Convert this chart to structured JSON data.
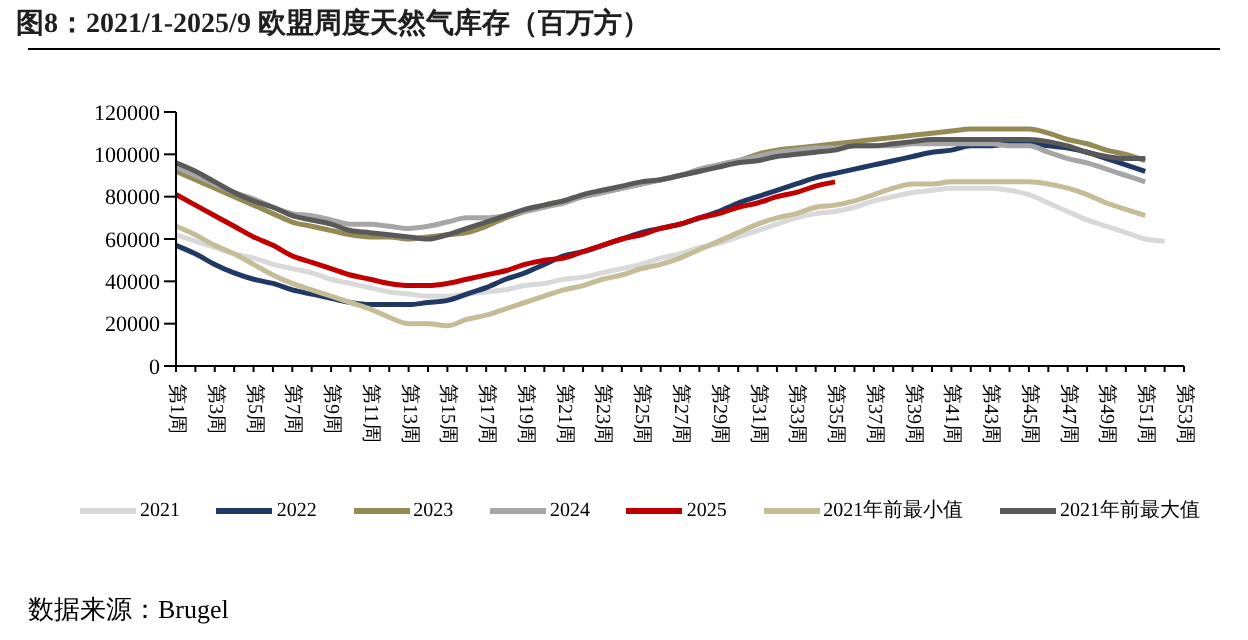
{
  "chart_data": {
    "type": "line",
    "title": "图8：2021/1-2025/9 欧盟周度天然气库存（百万方）",
    "categories": [
      "第1周",
      null,
      "第3周",
      null,
      "第5周",
      null,
      "第7周",
      null,
      "第9周",
      null,
      "第11周",
      null,
      "第13周",
      null,
      "第15周",
      null,
      "第17周",
      null,
      "第19周",
      null,
      "第21周",
      null,
      "第23周",
      null,
      "第25周",
      null,
      "第27周",
      null,
      "第29周",
      null,
      "第31周",
      null,
      "第33周",
      null,
      "第35周",
      null,
      "第37周",
      null,
      "第39周",
      null,
      "第41周",
      null,
      "第43周",
      null,
      "第45周",
      null,
      "第47周",
      null,
      "第49周",
      null,
      "第51周",
      null,
      "第53周"
    ],
    "series": [
      {
        "name": "2021",
        "color": "#d9d9d9",
        "values": [
          62000,
          59000,
          56000,
          53000,
          51000,
          48000,
          46000,
          44000,
          41000,
          39000,
          37000,
          35000,
          34000,
          33000,
          33000,
          34000,
          35000,
          36000,
          38000,
          39000,
          41000,
          42000,
          44000,
          46000,
          48000,
          51000,
          53000,
          56000,
          58000,
          61000,
          64000,
          67000,
          70000,
          72000,
          73000,
          75000,
          78000,
          80000,
          82000,
          83000,
          84000,
          84000,
          84000,
          83000,
          81000,
          77000,
          73000,
          69000,
          66000,
          63000,
          60000,
          59000,
          null
        ]
      },
      {
        "name": "2022",
        "color": "#1f3864",
        "values": [
          57000,
          53000,
          48000,
          44000,
          41000,
          39000,
          36000,
          34000,
          32000,
          30000,
          29000,
          29000,
          29000,
          30000,
          31000,
          34000,
          37000,
          41000,
          44000,
          48000,
          52000,
          54000,
          57000,
          60000,
          63000,
          65000,
          67000,
          70000,
          73000,
          77000,
          80000,
          83000,
          86000,
          89000,
          91000,
          93000,
          95000,
          97000,
          99000,
          101000,
          102000,
          104000,
          104000,
          105000,
          105000,
          104000,
          103000,
          101000,
          98000,
          95000,
          92000,
          null,
          null
        ]
      },
      {
        "name": "2023",
        "color": "#948a54",
        "values": [
          92000,
          88000,
          84000,
          80000,
          76000,
          72000,
          68000,
          66000,
          64000,
          62000,
          61000,
          61000,
          60000,
          61000,
          62000,
          63000,
          66000,
          70000,
          73000,
          76000,
          78000,
          80000,
          82000,
          84000,
          86000,
          88000,
          90000,
          92000,
          95000,
          97000,
          100000,
          102000,
          103000,
          104000,
          105000,
          106000,
          107000,
          108000,
          109000,
          110000,
          111000,
          112000,
          112000,
          112000,
          112000,
          110000,
          107000,
          105000,
          102000,
          100000,
          97000,
          null,
          null
        ]
      },
      {
        "name": "2024",
        "color": "#a6a6a6",
        "values": [
          94000,
          90000,
          86000,
          82000,
          79000,
          75000,
          72000,
          71000,
          69000,
          67000,
          67000,
          66000,
          65000,
          66000,
          68000,
          70000,
          70000,
          71000,
          73000,
          75000,
          77000,
          80000,
          82000,
          84000,
          86000,
          88000,
          90000,
          93000,
          95000,
          97000,
          99000,
          101000,
          102000,
          103000,
          103000,
          104000,
          104000,
          104000,
          105000,
          105000,
          105000,
          105000,
          105000,
          104000,
          104000,
          101000,
          98000,
          96000,
          93000,
          90000,
          87000,
          null,
          null
        ]
      },
      {
        "name": "2025",
        "color": "#c00000",
        "values": [
          81000,
          76000,
          71000,
          66000,
          61000,
          57000,
          52000,
          49000,
          46000,
          43000,
          41000,
          39000,
          38000,
          38000,
          39000,
          41000,
          43000,
          45000,
          48000,
          50000,
          51000,
          54000,
          57000,
          60000,
          62000,
          65000,
          67000,
          70000,
          72000,
          75000,
          77000,
          80000,
          82000,
          85000,
          87000,
          null,
          null,
          null,
          null,
          null,
          null,
          null,
          null,
          null,
          null,
          null,
          null,
          null,
          null,
          null,
          null,
          null,
          null
        ]
      },
      {
        "name": "2021年前最小值",
        "color": "#c4bd97",
        "values": [
          66000,
          62000,
          57000,
          53000,
          48000,
          43000,
          39000,
          36000,
          33000,
          30000,
          27000,
          23000,
          20000,
          20000,
          19000,
          22000,
          24000,
          27000,
          30000,
          33000,
          36000,
          38000,
          41000,
          43000,
          46000,
          48000,
          51000,
          55000,
          59000,
          63000,
          67000,
          70000,
          72000,
          75000,
          76000,
          78000,
          81000,
          84000,
          86000,
          86000,
          87000,
          87000,
          87000,
          87000,
          87000,
          86000,
          84000,
          81000,
          77000,
          74000,
          71000,
          null,
          null
        ]
      },
      {
        "name": "2021年前最大值",
        "color": "#595959",
        "values": [
          96000,
          92000,
          87000,
          82000,
          78000,
          75000,
          71000,
          69000,
          67000,
          64000,
          63000,
          62000,
          61000,
          60000,
          62000,
          65000,
          68000,
          71000,
          74000,
          76000,
          78000,
          81000,
          83000,
          85000,
          87000,
          88000,
          90000,
          92000,
          94000,
          96000,
          97000,
          99000,
          100000,
          101000,
          102000,
          104000,
          104000,
          105000,
          106000,
          107000,
          107000,
          107000,
          107000,
          107000,
          107000,
          106000,
          104000,
          101000,
          99000,
          98000,
          98000,
          null,
          null
        ]
      }
    ],
    "ylim": [
      0,
      120000
    ],
    "yticks": [
      0,
      20000,
      40000,
      60000,
      80000,
      100000,
      120000
    ],
    "legend": "bottom",
    "marker": "none",
    "line_style": "solid",
    "annotations": [
      "数据来源：Brugel"
    ]
  }
}
